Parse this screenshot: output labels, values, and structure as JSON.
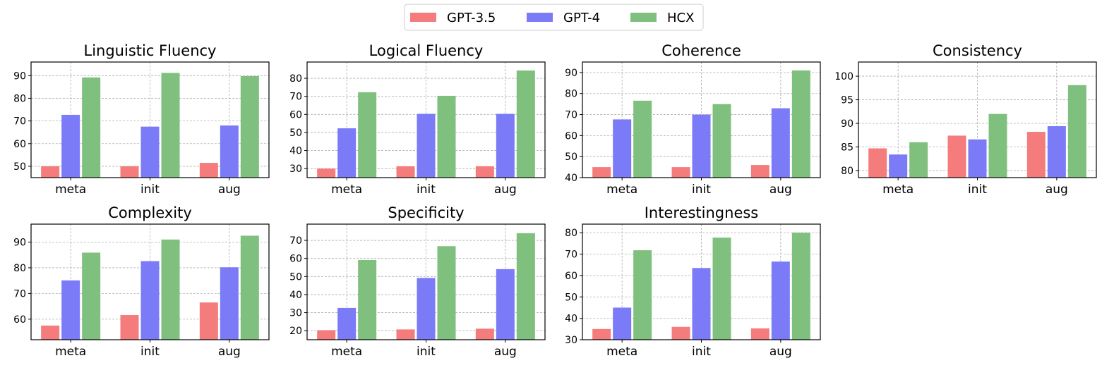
{
  "legend": [
    {
      "name": "GPT-3.5",
      "color": "#f47c7c"
    },
    {
      "name": "GPT-4",
      "color": "#7b7bf8"
    },
    {
      "name": "HCX",
      "color": "#7fc07f"
    }
  ],
  "chart_data": [
    {
      "type": "bar",
      "title": "Linguistic Fluency",
      "categories": [
        "meta",
        "init",
        "aug"
      ],
      "ylim": [
        45,
        96
      ],
      "yticks": [
        50,
        60,
        70,
        80,
        90
      ],
      "series": [
        {
          "name": "GPT-3.5",
          "values": [
            50,
            50,
            51.5
          ]
        },
        {
          "name": "GPT-4",
          "values": [
            72.7,
            67.5,
            68
          ]
        },
        {
          "name": "HCX",
          "values": [
            89.2,
            91.2,
            89.8
          ]
        }
      ]
    },
    {
      "type": "bar",
      "title": "Logical Fluency",
      "categories": [
        "meta",
        "init",
        "aug"
      ],
      "ylim": [
        25,
        89
      ],
      "yticks": [
        30,
        40,
        50,
        60,
        70,
        80
      ],
      "series": [
        {
          "name": "GPT-3.5",
          "values": [
            30,
            31.3,
            31.3
          ]
        },
        {
          "name": "GPT-4",
          "values": [
            52.3,
            60.3,
            60.3
          ]
        },
        {
          "name": "HCX",
          "values": [
            72.3,
            70.3,
            84.3
          ]
        }
      ]
    },
    {
      "type": "bar",
      "title": "Coherence",
      "categories": [
        "meta",
        "init",
        "aug"
      ],
      "ylim": [
        40,
        95
      ],
      "yticks": [
        40,
        50,
        60,
        70,
        80,
        90
      ],
      "series": [
        {
          "name": "GPT-3.5",
          "values": [
            45,
            45,
            46
          ]
        },
        {
          "name": "GPT-4",
          "values": [
            67.7,
            70,
            73
          ]
        },
        {
          "name": "HCX",
          "values": [
            76.6,
            75,
            91
          ]
        }
      ]
    },
    {
      "type": "bar",
      "title": "Consistency",
      "categories": [
        "meta",
        "init",
        "aug"
      ],
      "ylim": [
        78.5,
        103
      ],
      "yticks": [
        80,
        85,
        90,
        95,
        100
      ],
      "series": [
        {
          "name": "GPT-3.5",
          "values": [
            84.7,
            87.4,
            88.2
          ]
        },
        {
          "name": "GPT-4",
          "values": [
            83.4,
            86.6,
            89.4
          ]
        },
        {
          "name": "HCX",
          "values": [
            86,
            92,
            98.1
          ]
        }
      ]
    },
    {
      "type": "bar",
      "title": "Complexity",
      "categories": [
        "meta",
        "init",
        "aug"
      ],
      "ylim": [
        52,
        97
      ],
      "yticks": [
        60,
        70,
        80,
        90
      ],
      "series": [
        {
          "name": "GPT-3.5",
          "values": [
            57.5,
            61.6,
            66.5
          ]
        },
        {
          "name": "GPT-4",
          "values": [
            75.1,
            82.6,
            80.2
          ]
        },
        {
          "name": "HCX",
          "values": [
            85.9,
            91,
            92.5
          ]
        }
      ]
    },
    {
      "type": "bar",
      "title": "Specificity",
      "categories": [
        "meta",
        "init",
        "aug"
      ],
      "ylim": [
        15,
        79
      ],
      "yticks": [
        20,
        30,
        40,
        50,
        60,
        70
      ],
      "series": [
        {
          "name": "GPT-3.5",
          "values": [
            20.3,
            20.7,
            21.1
          ]
        },
        {
          "name": "GPT-4",
          "values": [
            32.6,
            49.2,
            54.1
          ]
        },
        {
          "name": "HCX",
          "values": [
            59.1,
            66.8,
            74
          ]
        }
      ]
    },
    {
      "type": "bar",
      "title": "Interestingness",
      "categories": [
        "meta",
        "init",
        "aug"
      ],
      "ylim": [
        30,
        84
      ],
      "yticks": [
        30,
        40,
        50,
        60,
        70,
        80
      ],
      "series": [
        {
          "name": "GPT-3.5",
          "values": [
            35,
            36,
            35.3
          ]
        },
        {
          "name": "GPT-4",
          "values": [
            45,
            63.5,
            66.5
          ]
        },
        {
          "name": "HCX",
          "values": [
            71.8,
            77.7,
            80
          ]
        }
      ]
    }
  ]
}
